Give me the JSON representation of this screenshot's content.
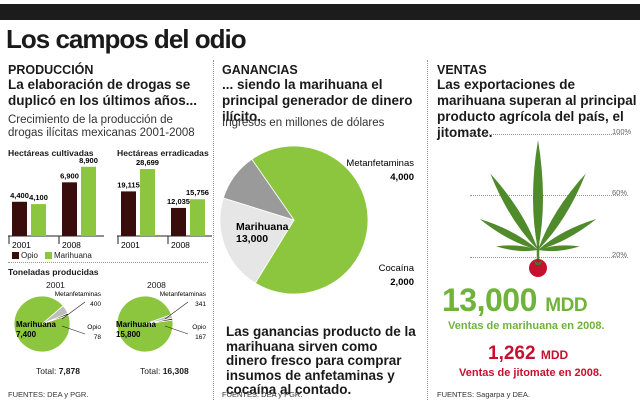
{
  "header": {
    "title": "Los campos del odio"
  },
  "produccion": {
    "heading": "PRODUCCIÓN",
    "lead": "La elaboración de drogas se duplicó en los últimos años...",
    "subtitle": "Crecimiento de la producción de drogas ilícitas mexicanas 2001-2008",
    "source": "FUENTES: DEA y PGR."
  },
  "ganancias": {
    "heading": "GANANCIAS",
    "lead": "... siendo la marihuana el principal generador de dinero ilícito.",
    "subtitle": "Ingresos en millones de dólares",
    "footer": "Las ganancias producto de la marihuana sirven como dinero fresco para comprar insumos de anfetaminas y cocaína al contado.",
    "source": "FUENTES: DEA y PGR."
  },
  "ventas": {
    "heading": "VENTAS",
    "lead": "Las exportaciones de marihuana superan al principal producto agrícola del país, el jitomate.",
    "big_value": "13,000",
    "big_unit": "MDD",
    "big_caption": "Ventas de marihuana en 2008.",
    "small_value": "1,262",
    "small_unit": "MDD",
    "small_caption": "Ventas de jitomate en 2008.",
    "scale_labels": [
      "100%",
      "60%",
      "20%"
    ],
    "source": "FUENTES: Sagarpa y DEA."
  },
  "colors": {
    "opio": "#3a0d0d",
    "marihuana": "#8cc63f",
    "bigGreen": "#6fb33a",
    "tomato": "#c8102e",
    "meth": "#e6e6e6",
    "coca": "#9a9a9a",
    "leaf": "#4f8a2b"
  },
  "chart_data": [
    {
      "type": "bar",
      "title": "Hectáreas cultivadas",
      "categories": [
        "2001",
        "2008"
      ],
      "series": [
        {
          "name": "Opio",
          "values": [
            4400,
            6900
          ],
          "labels": [
            "4,400",
            "6,900"
          ]
        },
        {
          "name": "Marihuana",
          "values": [
            4100,
            8900
          ],
          "labels": [
            "4,100",
            "8,900"
          ]
        }
      ]
    },
    {
      "type": "bar",
      "title": "Hectáreas erradicadas",
      "categories": [
        "2001",
        "2008"
      ],
      "series": [
        {
          "name": "Opio",
          "values": [
            19115,
            12035
          ],
          "labels": [
            "19,115",
            "12,035"
          ]
        },
        {
          "name": "Marihuana",
          "values": [
            28699,
            15756
          ],
          "labels": [
            "28,699",
            "15,756"
          ]
        }
      ]
    },
    {
      "type": "pie",
      "title": "Toneladas producidas",
      "year": "2001",
      "slices": [
        {
          "name": "Marihuana",
          "value": 7400,
          "label": "7,400"
        },
        {
          "name": "Metanfetaminas",
          "value": 400,
          "label": "400"
        },
        {
          "name": "Opio",
          "value": 78,
          "label": "78"
        }
      ],
      "total_label": "Total:",
      "total": "7,878"
    },
    {
      "type": "pie",
      "year": "2008",
      "slices": [
        {
          "name": "Marihuana",
          "value": 15800,
          "label": "15,800"
        },
        {
          "name": "Metanfetaminas",
          "value": 341,
          "label": "341"
        },
        {
          "name": "Opio",
          "value": 167,
          "label": "167"
        }
      ],
      "total_label": "Total:",
      "total": "16,308"
    },
    {
      "type": "pie",
      "slices": [
        {
          "name": "Marihuana",
          "value": 13000,
          "label": "13,000"
        },
        {
          "name": "Metanfetaminas",
          "value": 4000,
          "label": "4,000"
        },
        {
          "name": "Cocaína",
          "value": 2000,
          "label": "2,000"
        }
      ]
    }
  ]
}
